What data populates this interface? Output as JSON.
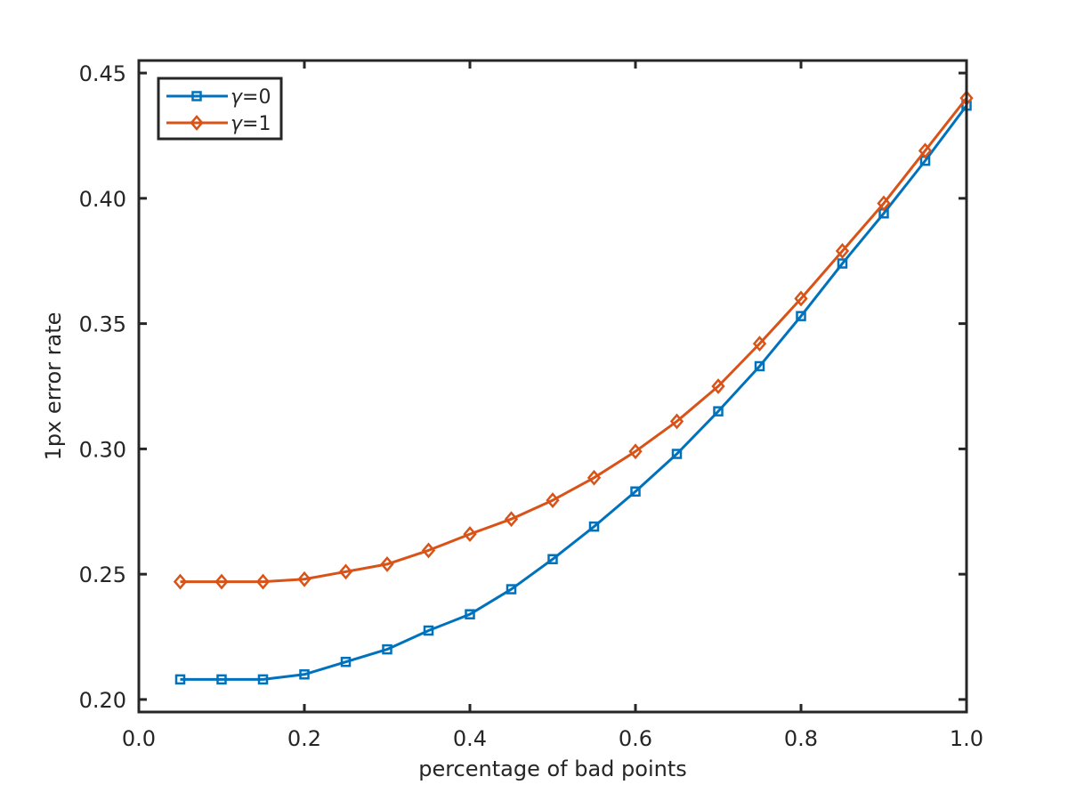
{
  "chart_data": {
    "type": "line",
    "title": "",
    "xlabel": "percentage of bad points",
    "ylabel": "1px error rate",
    "xlim": [
      0.0,
      1.0
    ],
    "ylim": [
      0.195,
      0.455
    ],
    "xticks": [
      0.0,
      0.2,
      0.4,
      0.6,
      0.8,
      1.0
    ],
    "xtick_labels": [
      "0.0",
      "0.2",
      "0.4",
      "0.6",
      "0.8",
      "1.0"
    ],
    "yticks": [
      0.2,
      0.25,
      0.3,
      0.35,
      0.4,
      0.45
    ],
    "ytick_labels": [
      "0.20",
      "0.25",
      "0.30",
      "0.35",
      "0.40",
      "0.45"
    ],
    "grid": false,
    "legend_position": "top-left",
    "x": [
      0.05,
      0.1,
      0.15,
      0.2,
      0.25,
      0.3,
      0.35,
      0.4,
      0.45,
      0.5,
      0.55,
      0.6,
      0.65,
      0.7,
      0.75,
      0.8,
      0.85,
      0.9,
      0.95,
      1.0
    ],
    "series": [
      {
        "name": "γ=0",
        "gamma_symbol": "γ",
        "gamma_value": "=0",
        "color": "#0072BD",
        "marker": "square",
        "values": [
          0.208,
          0.208,
          0.208,
          0.21,
          0.215,
          0.22,
          0.2275,
          0.234,
          0.244,
          0.256,
          0.269,
          0.283,
          0.298,
          0.315,
          0.333,
          0.353,
          0.374,
          0.394,
          0.415,
          0.437
        ]
      },
      {
        "name": "γ=1",
        "gamma_symbol": "γ",
        "gamma_value": "=1",
        "color": "#D95319",
        "marker": "diamond",
        "values": [
          0.247,
          0.247,
          0.247,
          0.248,
          0.251,
          0.254,
          0.2595,
          0.266,
          0.272,
          0.2795,
          0.2885,
          0.299,
          0.311,
          0.325,
          0.342,
          0.36,
          0.379,
          0.398,
          0.419,
          0.44
        ]
      }
    ]
  }
}
